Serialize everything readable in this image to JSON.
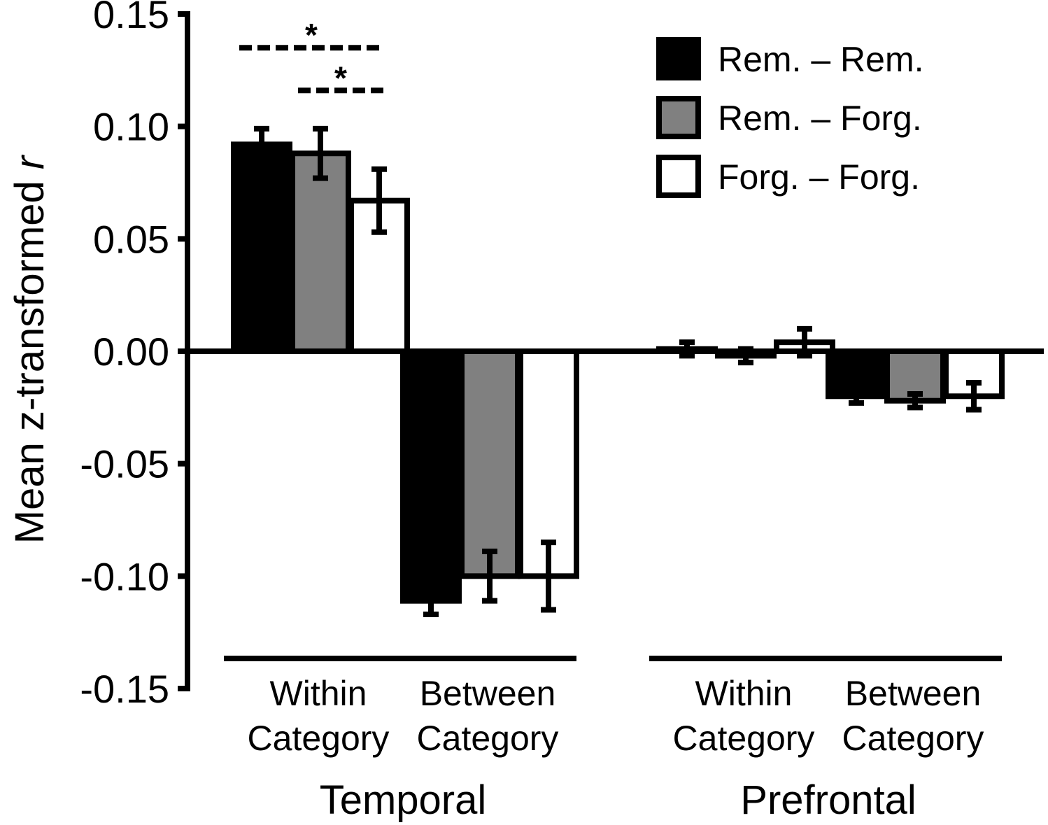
{
  "chart_data": {
    "type": "bar",
    "ylabel": {
      "main": "Mean z-transformed ",
      "italic": "r"
    },
    "ylim": [
      -0.15,
      0.15
    ],
    "yticks": [
      0.15,
      0.1,
      0.05,
      0.0,
      -0.05,
      -0.1,
      -0.15
    ],
    "ytick_labels": [
      "0.15",
      "0.10",
      "0.05",
      "0.00",
      "-0.05",
      "-0.10",
      "-0.15"
    ],
    "groups": [
      {
        "name": "Temporal",
        "categories": [
          {
            "line1": "Within",
            "line2": "Category"
          },
          {
            "line1": "Between",
            "line2": "Category"
          }
        ]
      },
      {
        "name": "Prefrontal",
        "categories": [
          {
            "line1": "Within",
            "line2": "Category"
          },
          {
            "line1": "Between",
            "line2": "Category"
          }
        ]
      }
    ],
    "series": [
      {
        "name": "Rem. – Rem.",
        "color": "#000000",
        "values": [
          0.092,
          -0.111,
          0.001,
          -0.02
        ],
        "errors": [
          0.007,
          0.006,
          0.003,
          0.003
        ]
      },
      {
        "name": "Rem. – Forg.",
        "color": "#808080",
        "values": [
          0.088,
          -0.1,
          -0.002,
          -0.022
        ],
        "errors": [
          0.011,
          0.011,
          0.003,
          0.003
        ]
      },
      {
        "name": "Forg. – Forg.",
        "color": "#ffffff",
        "values": [
          0.067,
          -0.1,
          0.004,
          -0.02
        ],
        "errors": [
          0.014,
          0.015,
          0.006,
          0.006
        ]
      }
    ],
    "significance": [
      {
        "category_index": 0,
        "from_series": 0,
        "to_series": 2,
        "label": "*",
        "y": 0.135
      },
      {
        "category_index": 0,
        "from_series": 1,
        "to_series": 2,
        "label": "*",
        "y": 0.116
      }
    ],
    "legend_position": "top-right",
    "grid": false
  }
}
